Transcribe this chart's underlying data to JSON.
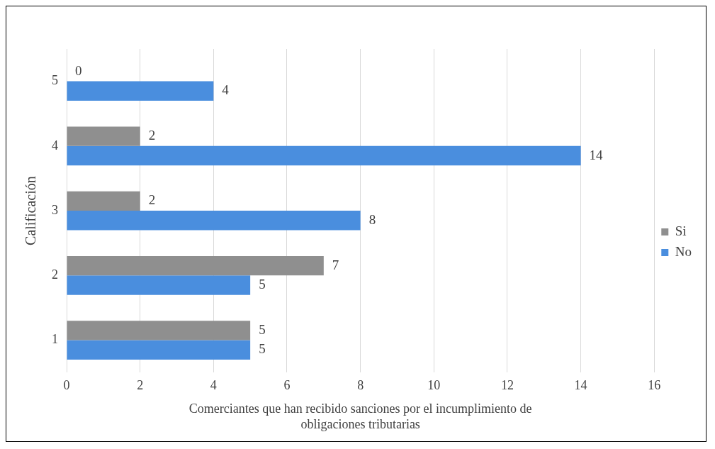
{
  "chart_data": {
    "type": "bar",
    "orientation": "horizontal",
    "xlabel": "Comerciantes que han recibido sanciones por el incumplimiento de obligaciones tributarias",
    "ylabel": "Calificación",
    "categories": [
      "5",
      "4",
      "3",
      "2",
      "1"
    ],
    "series": [
      {
        "name": "Si",
        "color": "#8f8f8f",
        "values": [
          0,
          2,
          2,
          7,
          5
        ]
      },
      {
        "name": "No",
        "color": "#4a8ede",
        "values": [
          4,
          14,
          8,
          5,
          5
        ]
      }
    ],
    "xlim": [
      0,
      16
    ],
    "xticks": [
      0,
      2,
      4,
      6,
      8,
      10,
      12,
      14,
      16
    ],
    "grid": "x",
    "legend": "right",
    "data_labels": true
  }
}
